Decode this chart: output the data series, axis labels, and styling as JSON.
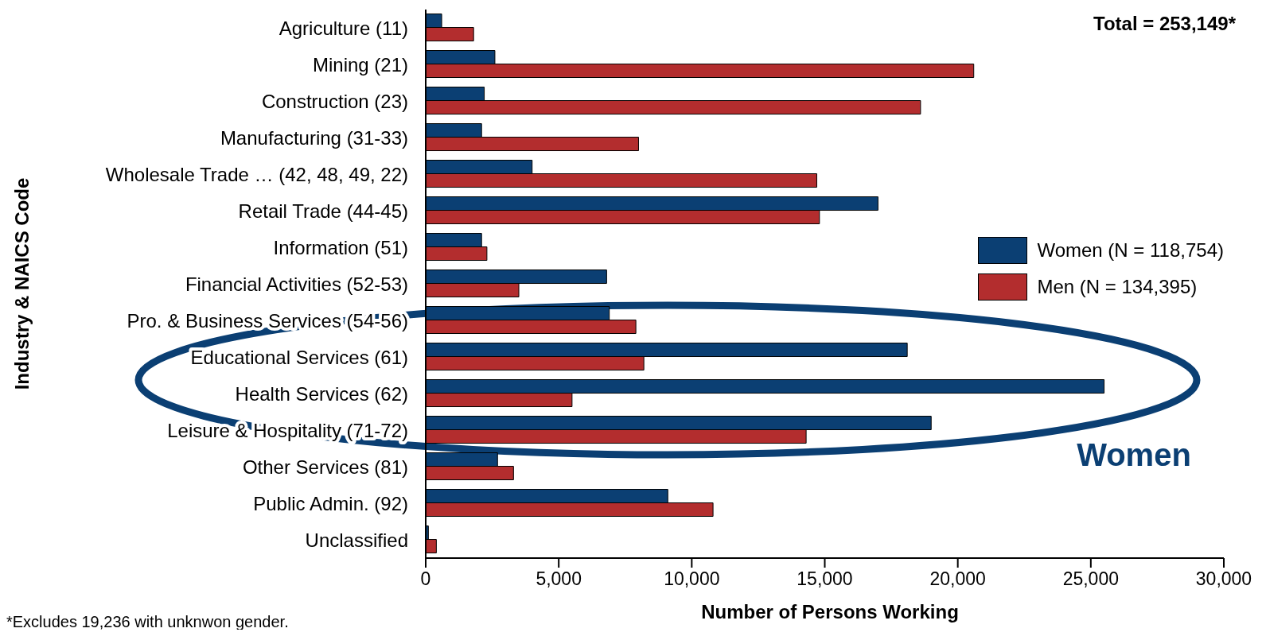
{
  "chart_data": {
    "type": "bar",
    "orientation": "horizontal",
    "title": "Total = 253,149*",
    "xlabel": "Number of Persons Working",
    "ylabel": "Industry & NAICS Code",
    "categories": [
      "Agriculture (11)",
      "Mining (21)",
      "Construction (23)",
      "Manufacturing (31-33)",
      "Wholesale Trade … (42, 48, 49, 22)",
      "Retail Trade (44-45)",
      "Information (51)",
      "Financial Activities (52-53)",
      "Pro. & Business Services (54-56)",
      "Educational Services (61)",
      "Health Services (62)",
      "Leisure & Hospitality (71-72)",
      "Other Services (81)",
      "Public Admin. (92)",
      "Unclassified"
    ],
    "series": [
      {
        "name": "Women (N = 118,754)",
        "color": "#0b3f73",
        "values": [
          600,
          2600,
          2200,
          2100,
          4000,
          17000,
          2100,
          6800,
          6900,
          18100,
          25500,
          19000,
          2700,
          9100,
          100
        ]
      },
      {
        "name": "Men (N = 134,395)",
        "color": "#b32d2e",
        "values": [
          1800,
          20600,
          18600,
          8000,
          14700,
          14800,
          2300,
          3500,
          7900,
          8200,
          5500,
          14300,
          3300,
          10800,
          400
        ]
      }
    ],
    "xlim": [
      0,
      30000
    ],
    "xticks": [
      {
        "value": 0,
        "label": "0"
      },
      {
        "value": 5000,
        "label": "5,000"
      },
      {
        "value": 10000,
        "label": "10,000"
      },
      {
        "value": 15000,
        "label": "15,000"
      },
      {
        "value": 20000,
        "label": "20,000"
      },
      {
        "value": 25000,
        "label": "25,000"
      },
      {
        "value": 30000,
        "label": "30,000"
      }
    ],
    "legend": "right",
    "annotations": [
      "Women",
      "*Excludes 19,236 with unknwon gender."
    ]
  }
}
